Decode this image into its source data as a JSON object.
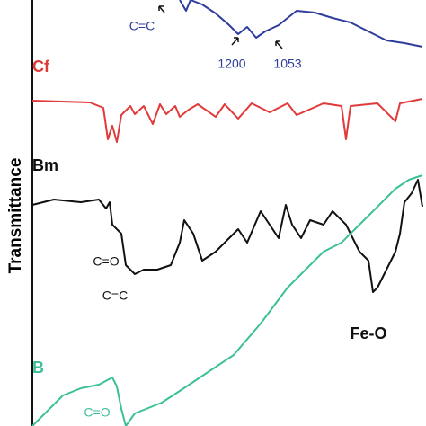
{
  "chart_data": {
    "type": "line",
    "ylabel": "Transmittance",
    "xlim": [
      36,
      470
    ],
    "ylim": [
      0,
      474
    ],
    "series": [
      {
        "color": "#2e3d9c",
        "x": [
          200,
          207,
          212,
          225,
          240,
          255,
          265,
          275,
          285,
          295,
          310,
          330,
          350,
          370,
          390,
          410,
          430,
          450,
          470
        ],
        "values": [
          474,
          462,
          474,
          469,
          459,
          446,
          436,
          444,
          432,
          439,
          446,
          462,
          460,
          454,
          449,
          439,
          429,
          426,
          422
        ]
      },
      {
        "name": "Cf",
        "color": "#e03a3a",
        "x": [
          36,
          100,
          115,
          120,
          125,
          130,
          135,
          145,
          150,
          160,
          170,
          178,
          185,
          195,
          200,
          210,
          220,
          240,
          250,
          265,
          280,
          300,
          320,
          330,
          360,
          380,
          385,
          390,
          420,
          440,
          445,
          470
        ],
        "values": [
          362,
          360,
          354,
          319,
          334,
          316,
          346,
          356,
          347,
          356,
          336,
          358,
          347,
          356,
          344,
          352,
          358,
          344,
          358,
          342,
          359,
          349,
          359,
          346,
          359,
          356,
          319,
          356,
          359,
          339,
          359,
          364
        ]
      },
      {
        "name": "Bm",
        "color": "#111111",
        "x": [
          36,
          60,
          90,
          110,
          118,
          122,
          125,
          135,
          140,
          150,
          160,
          175,
          190,
          200,
          205,
          215,
          225,
          240,
          255,
          265,
          275,
          290,
          300,
          310,
          318,
          325,
          335,
          345,
          360,
          370,
          385,
          400,
          410,
          415,
          420,
          430,
          440,
          445,
          450,
          458,
          465,
          470
        ],
        "values": [
          246,
          252,
          249,
          252,
          242,
          249,
          224,
          214,
          179,
          169,
          174,
          174,
          179,
          204,
          229,
          214,
          184,
          194,
          209,
          219,
          204,
          239,
          224,
          209,
          246,
          224,
          209,
          229,
          224,
          239,
          224,
          194,
          184,
          149,
          154,
          174,
          194,
          214,
          249,
          259,
          274,
          244
        ]
      },
      {
        "name": "B",
        "color": "#3dbf9a",
        "x": [
          36,
          50,
          70,
          90,
          110,
          125,
          130,
          135,
          140,
          150,
          180,
          200,
          230,
          260,
          290,
          320,
          340,
          360,
          380,
          400,
          420,
          440,
          455,
          470
        ],
        "values": [
          0,
          14,
          34,
          42,
          46,
          54,
          44,
          19,
          0,
          14,
          26,
          39,
          59,
          79,
          114,
          154,
          174,
          194,
          204,
          224,
          244,
          264,
          274,
          279
        ]
      }
    ],
    "annotations": [
      {
        "text": "C=C",
        "color": "#2e3d9c"
      },
      {
        "text": "1200",
        "color": "#2e3d9c"
      },
      {
        "text": "1053",
        "color": "#2e3d9c"
      },
      {
        "text": "C=O",
        "color": "#111111"
      },
      {
        "text": "C=C",
        "color": "#111111"
      },
      {
        "text": "Fe-O",
        "color": "#111111"
      },
      {
        "text": "C=O",
        "color": "#3dbf9a"
      }
    ]
  }
}
